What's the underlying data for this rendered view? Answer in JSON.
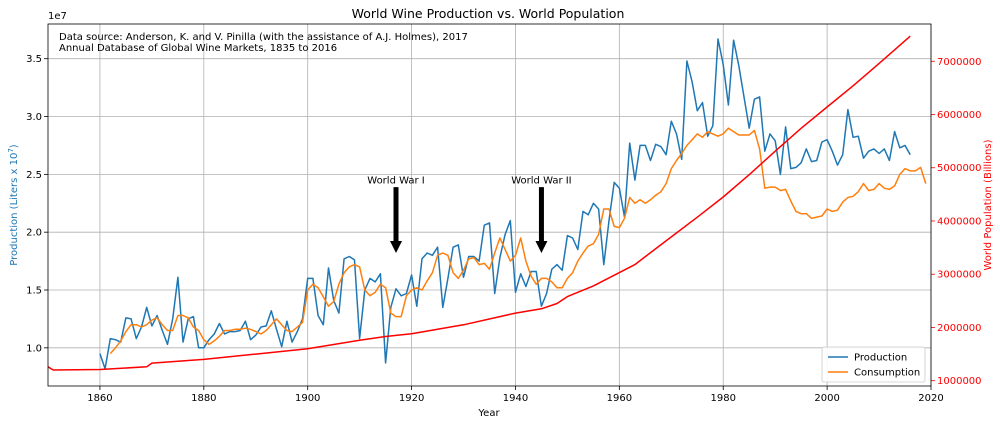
{
  "chart_data": {
    "type": "line",
    "title": "World Wine Production vs. World Population",
    "xlabel": "Year",
    "ylabel_left": "Production (Liters x 10",
    "ylabel_left_exp": "7",
    "ylabel_left_tail": ")",
    "ylabel_right": "World Population (Billions)",
    "offset_label": "1e7",
    "source_line1": "Data source: Anderson, K. and V. Pinilla (with the assistance of A.J. Holmes), 2017",
    "source_line2": "Annual Database of Global Wine Markets, 1835 to 2016",
    "xlim": [
      1850,
      2020
    ],
    "ylim_left": [
      0.67,
      3.8
    ],
    "ylim_right": [
      900000,
      7700000
    ],
    "xticks": [
      1860,
      1880,
      1900,
      1920,
      1940,
      1960,
      1980,
      2000,
      2020
    ],
    "yticks_left": [
      1.0,
      1.5,
      2.0,
      2.5,
      3.0,
      3.5
    ],
    "yticks_right": [
      1000000,
      2000000,
      3000000,
      4000000,
      5000000,
      6000000,
      7000000
    ],
    "grid": true,
    "legend_position": "lower-right",
    "colors": {
      "production": "#1f77b4",
      "consumption": "#ff7f0e",
      "population": "#ff0000"
    },
    "annotations": [
      {
        "text": "World War I",
        "x": 1917,
        "y_text": 2.42,
        "y_arrow_start": 2.39,
        "y_arrow_end": 1.82
      },
      {
        "text": "World War II",
        "x": 1945,
        "y_text": 2.42,
        "y_arrow_start": 2.39,
        "y_arrow_end": 1.82
      }
    ],
    "series": [
      {
        "name": "Production",
        "axis": "left",
        "x_start": 1860,
        "values": [
          0.95,
          0.82,
          1.08,
          1.07,
          1.05,
          1.26,
          1.25,
          1.08,
          1.18,
          1.35,
          1.19,
          1.28,
          1.15,
          1.03,
          1.25,
          1.61,
          1.05,
          1.25,
          1.27,
          1.0,
          1.0,
          1.07,
          1.12,
          1.21,
          1.12,
          1.14,
          1.14,
          1.15,
          1.23,
          1.07,
          1.11,
          1.18,
          1.19,
          1.32,
          1.16,
          1.01,
          1.23,
          1.05,
          1.14,
          1.25,
          1.6,
          1.6,
          1.28,
          1.2,
          1.69,
          1.41,
          1.3,
          1.77,
          1.79,
          1.76,
          1.08,
          1.5,
          1.6,
          1.57,
          1.64,
          0.87,
          1.35,
          1.51,
          1.45,
          1.47,
          1.63,
          1.36,
          1.77,
          1.82,
          1.8,
          1.87,
          1.35,
          1.6,
          1.87,
          1.89,
          1.61,
          1.79,
          1.79,
          1.75,
          2.06,
          2.08,
          1.47,
          1.78,
          1.98,
          2.1,
          1.48,
          1.64,
          1.53,
          1.66,
          1.66,
          1.36,
          1.47,
          1.68,
          1.72,
          1.67,
          1.97,
          1.95,
          1.85,
          2.18,
          2.15,
          2.25,
          2.2,
          1.72,
          2.1,
          2.43,
          2.38,
          2.13,
          2.77,
          2.45,
          2.75,
          2.75,
          2.62,
          2.76,
          2.74,
          2.67,
          2.96,
          2.85,
          2.63,
          3.48,
          3.3,
          3.05,
          3.12,
          2.83,
          2.92,
          3.67,
          3.45,
          3.1,
          3.66,
          3.44,
          3.17,
          2.9,
          3.15,
          3.17,
          2.7,
          2.85,
          2.79,
          2.5,
          2.91,
          2.55,
          2.56,
          2.6,
          2.72,
          2.61,
          2.62,
          2.78,
          2.8,
          2.7,
          2.58,
          2.67,
          3.06,
          2.82,
          2.83,
          2.64,
          2.7,
          2.72,
          2.68,
          2.72,
          2.62,
          2.87,
          2.73,
          2.75,
          2.67
        ]
      },
      {
        "name": "Consumption",
        "axis": "left",
        "x_start": 1862,
        "values": [
          0.95,
          1.0,
          1.06,
          1.14,
          1.2,
          1.2,
          1.18,
          1.2,
          1.24,
          1.26,
          1.2,
          1.15,
          1.15,
          1.28,
          1.28,
          1.26,
          1.18,
          1.15,
          1.07,
          1.03,
          1.06,
          1.1,
          1.15,
          1.15,
          1.16,
          1.16,
          1.17,
          1.16,
          1.14,
          1.12,
          1.15,
          1.2,
          1.25,
          1.2,
          1.15,
          1.14,
          1.18,
          1.22,
          1.5,
          1.55,
          1.52,
          1.44,
          1.36,
          1.4,
          1.55,
          1.65,
          1.7,
          1.72,
          1.7,
          1.5,
          1.45,
          1.48,
          1.55,
          1.52,
          1.3,
          1.27,
          1.27,
          1.45,
          1.5,
          1.52,
          1.5,
          1.58,
          1.65,
          1.8,
          1.82,
          1.8,
          1.65,
          1.6,
          1.67,
          1.77,
          1.78,
          1.72,
          1.73,
          1.68,
          1.82,
          1.95,
          1.85,
          1.75,
          1.8,
          1.95,
          1.75,
          1.62,
          1.55,
          1.6,
          1.6,
          1.57,
          1.52,
          1.52,
          1.6,
          1.65,
          1.75,
          1.82,
          1.88,
          1.9,
          1.98,
          2.2,
          2.2,
          2.05,
          2.04,
          2.12,
          2.3,
          2.25,
          2.28,
          2.25,
          2.28,
          2.32,
          2.35,
          2.42,
          2.55,
          2.62,
          2.68,
          2.75,
          2.8,
          2.85,
          2.82,
          2.87,
          2.85,
          2.83,
          2.85,
          2.9,
          2.87,
          2.84,
          2.84,
          2.84,
          2.88,
          2.72,
          2.38,
          2.39,
          2.39,
          2.36,
          2.37,
          2.27,
          2.18,
          2.16,
          2.16,
          2.12,
          2.13,
          2.14,
          2.2,
          2.18,
          2.19,
          2.26,
          2.3,
          2.31,
          2.35,
          2.42,
          2.36,
          2.37,
          2.42,
          2.38,
          2.37,
          2.4,
          2.5,
          2.55,
          2.53,
          2.53,
          2.56,
          2.42
        ]
      },
      {
        "name": "World Population",
        "axis": "right",
        "points": [
          [
            1850,
            1260000
          ],
          [
            1851,
            1200000
          ],
          [
            1860,
            1210000
          ],
          [
            1869,
            1260000
          ],
          [
            1870,
            1330000
          ],
          [
            1880,
            1400000
          ],
          [
            1890,
            1500000
          ],
          [
            1900,
            1600000
          ],
          [
            1910,
            1760000
          ],
          [
            1915,
            1830000
          ],
          [
            1917,
            1850000
          ],
          [
            1920,
            1880000
          ],
          [
            1930,
            2050000
          ],
          [
            1940,
            2270000
          ],
          [
            1945,
            2350000
          ],
          [
            1948,
            2450000
          ],
          [
            1950,
            2580000
          ],
          [
            1955,
            2780000
          ],
          [
            1960,
            3030000
          ],
          [
            1963,
            3180000
          ],
          [
            1965,
            3330000
          ],
          [
            1970,
            3700000
          ],
          [
            1975,
            4070000
          ],
          [
            1980,
            4450000
          ],
          [
            1985,
            4870000
          ],
          [
            1990,
            5310000
          ],
          [
            1995,
            5740000
          ],
          [
            2000,
            6140000
          ],
          [
            2005,
            6540000
          ],
          [
            2010,
            6960000
          ],
          [
            2014,
            7300000
          ],
          [
            2016,
            7470000
          ]
        ]
      }
    ]
  }
}
